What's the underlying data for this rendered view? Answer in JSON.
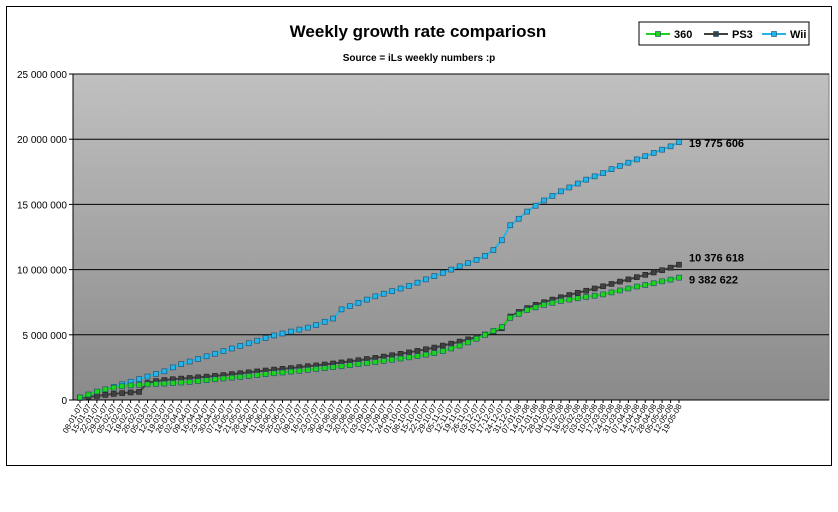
{
  "chart_data": {
    "type": "line",
    "title": "Weekly growth rate compariosn",
    "subtitle": "Source = iLs weekly numbers :p",
    "xlabel": "",
    "ylabel": "",
    "ylim": [
      0,
      25000000
    ],
    "y_ticks": [
      "0",
      "5 000 000",
      "10 000 000",
      "15 000 000",
      "20 000 000",
      "25 000 000"
    ],
    "grid": "horizontal",
    "legend_position": "top-right",
    "colors": {
      "360": "#1ed21e",
      "PS3": "#404040",
      "Wii": "#26b4e6",
      "plot_bg_top": "#c0c0c0",
      "plot_bg_bottom": "#8a8a8a"
    },
    "categories": [
      "08-01-07",
      "15-01-07",
      "22-01-07",
      "29-01-07",
      "05-02-07",
      "12-02-07",
      "19-02-07",
      "26-02-07",
      "05-03-07",
      "12-03-07",
      "19-03-07",
      "26-03-07",
      "02-04-07",
      "09-04-07",
      "16-04-07",
      "23-04-07",
      "30-04-07",
      "07-05-07",
      "14-05-07",
      "21-05-07",
      "28-05-07",
      "04-06-07",
      "11-06-07",
      "18-06-07",
      "25-06-07",
      "02-07-07",
      "09-07-07",
      "16-07-07",
      "23-07-07",
      "30-07-07",
      "06-08-07",
      "13-08-07",
      "20-08-07",
      "27-08-07",
      "03-09-07",
      "10-09-07",
      "17-09-07",
      "24-09-07",
      "01-10-07",
      "08-10-07",
      "15-10-07",
      "22-10-07",
      "29-10-07",
      "05-11-07",
      "12-11-07",
      "19-11-07",
      "26-11-07",
      "03-12-07",
      "10-12-07",
      "17-12-07",
      "24-12-07",
      "31-12-07",
      "07-01-08",
      "14-01-08",
      "21-01-08",
      "28-01-08",
      "04-02-08",
      "11-02-08",
      "18-02-08",
      "25-02-08",
      "03-03-08",
      "10-03-08",
      "17-03-08",
      "24-03-08",
      "31-03-08",
      "07-04-08",
      "14-04-08",
      "21-04-08",
      "28-04-08",
      "05-05-08",
      "12-05-08",
      "19-05-08"
    ],
    "series": [
      {
        "name": "360",
        "values": [
          200000,
          420000,
          650000,
          820000,
          950000,
          1050000,
          1120000,
          1170000,
          1200000,
          1230000,
          1260000,
          1300000,
          1340000,
          1390000,
          1450000,
          1520000,
          1590000,
          1650000,
          1710000,
          1770000,
          1840000,
          1910000,
          1980000,
          2050000,
          2110000,
          2180000,
          2240000,
          2310000,
          2380000,
          2440000,
          2520000,
          2590000,
          2670000,
          2750000,
          2830000,
          2910000,
          3000000,
          3090000,
          3180000,
          3270000,
          3370000,
          3480000,
          3600000,
          3760000,
          3950000,
          4170000,
          4420000,
          4700000,
          5000000,
          5300000,
          5600000,
          6300000,
          6600000,
          6900000,
          7100000,
          7300000,
          7450000,
          7600000,
          7700000,
          7800000,
          7900000,
          8000000,
          8100000,
          8250000,
          8400000,
          8550000,
          8700000,
          8820000,
          8950000,
          9100000,
          9230000,
          9382622
        ]
      },
      {
        "name": "PS3",
        "values": [
          150000,
          230000,
          310000,
          390000,
          470000,
          530000,
          580000,
          620000,
          1300000,
          1450000,
          1530000,
          1590000,
          1640000,
          1690000,
          1740000,
          1790000,
          1850000,
          1910000,
          1980000,
          2050000,
          2120000,
          2190000,
          2260000,
          2330000,
          2390000,
          2450000,
          2520000,
          2590000,
          2650000,
          2720000,
          2800000,
          2880000,
          2960000,
          3050000,
          3140000,
          3230000,
          3330000,
          3430000,
          3540000,
          3650000,
          3770000,
          3890000,
          4020000,
          4170000,
          4320000,
          4480000,
          4650000,
          4830000,
          5020000,
          5220000,
          5500000,
          6400000,
          6750000,
          7050000,
          7300000,
          7500000,
          7700000,
          7880000,
          8050000,
          8220000,
          8380000,
          8550000,
          8720000,
          8900000,
          9080000,
          9250000,
          9420000,
          9600000,
          9780000,
          9950000,
          10150000,
          10376618
        ]
      },
      {
        "name": "Wii",
        "values": [
          200000,
          400000,
          600000,
          800000,
          1000000,
          1200000,
          1400000,
          1600000,
          1800000,
          2000000,
          2200000,
          2500000,
          2750000,
          2950000,
          3150000,
          3350000,
          3550000,
          3750000,
          3950000,
          4150000,
          4350000,
          4550000,
          4750000,
          4950000,
          5100000,
          5250000,
          5400000,
          5550000,
          5750000,
          6000000,
          6250000,
          6950000,
          7200000,
          7450000,
          7700000,
          7950000,
          8150000,
          8350000,
          8550000,
          8750000,
          9000000,
          9250000,
          9500000,
          9750000,
          10000000,
          10250000,
          10500000,
          10750000,
          11050000,
          11500000,
          12250000,
          13400000,
          13900000,
          14450000,
          14900000,
          15300000,
          15650000,
          16000000,
          16300000,
          16600000,
          16900000,
          17150000,
          17400000,
          17700000,
          17950000,
          18200000,
          18450000,
          18700000,
          18950000,
          19200000,
          19450000,
          19775606
        ]
      }
    ],
    "end_labels": [
      "9 382 622",
      "10 376 618",
      "19 775 606"
    ]
  }
}
